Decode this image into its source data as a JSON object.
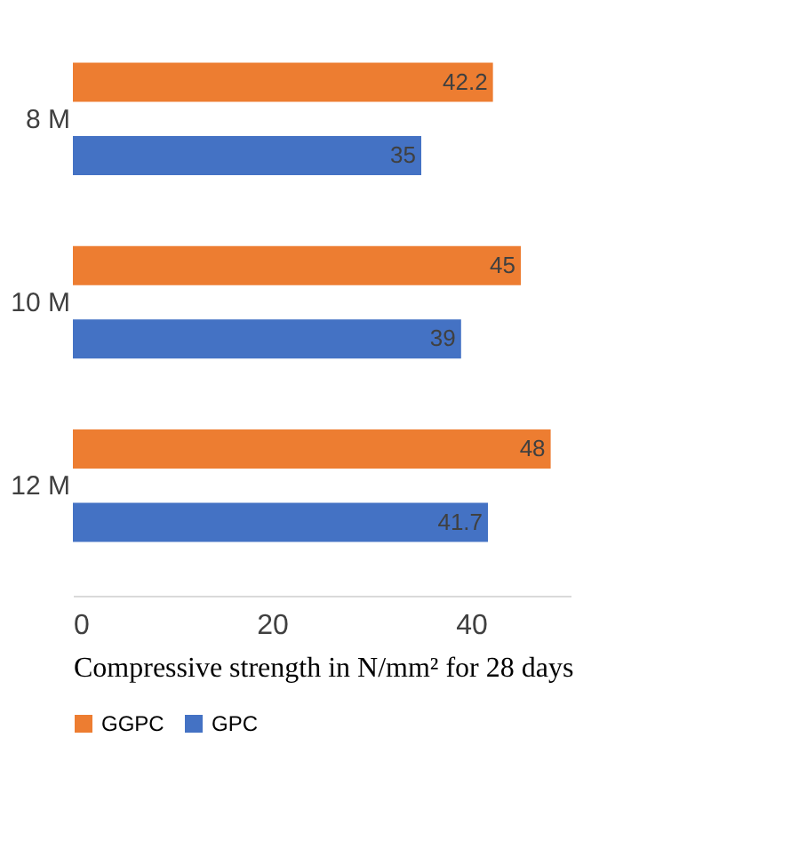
{
  "chart_data": {
    "type": "bar",
    "orientation": "horizontal",
    "categories": [
      "8 M",
      "10 M",
      "12 M"
    ],
    "series": [
      {
        "name": "GGPC",
        "color": "#ed7d31",
        "values": [
          42.2,
          45,
          48
        ]
      },
      {
        "name": "GPC",
        "color": "#4472c4",
        "values": [
          35,
          39,
          41.7
        ]
      }
    ],
    "xlim": [
      0,
      50
    ],
    "xticks": [
      0,
      20,
      40
    ],
    "xlabel": "Compressive strength in N/mm² for 28 days",
    "data_labels": true,
    "legend": "bottom",
    "grid": false
  }
}
